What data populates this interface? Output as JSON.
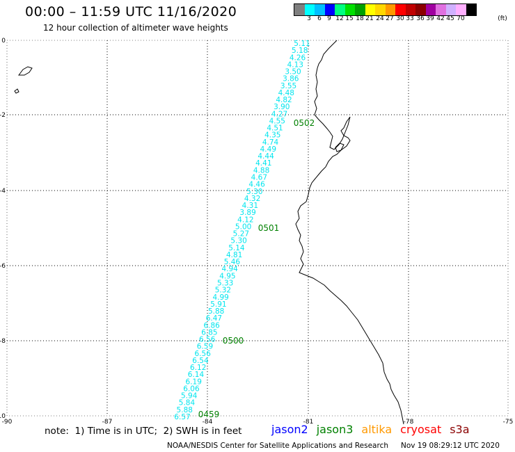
{
  "header": {
    "title": "00:00 – 11:59 UTC 11/16/2020",
    "subtitle": "12 hour collection of altimeter wave heights"
  },
  "scale": {
    "unit": "(ft)",
    "colors": [
      "#7f7f7f",
      "#00ffff",
      "#00bfff",
      "#0000ff",
      "#00ff80",
      "#00e000",
      "#00a000",
      "#ffff00",
      "#ffd700",
      "#ff9900",
      "#ff0000",
      "#c00000",
      "#8b0000",
      "#a000a0",
      "#e070e0",
      "#d0b0ff",
      "#ffb0ff",
      "#000000"
    ],
    "labels": [
      "3",
      "6",
      "9",
      "12",
      "15",
      "18",
      "21",
      "24",
      "27",
      "30",
      "33",
      "36",
      "39",
      "42",
      "45",
      "70"
    ]
  },
  "axes": {
    "lon_labels": [
      "-90",
      "-87",
      "-84",
      "-81",
      "-78",
      "-75"
    ],
    "lat_labels": [
      "0",
      "-2",
      "-4",
      "-6",
      "-8",
      "-10"
    ]
  },
  "track": {
    "color": "#00e5ee",
    "wave_heights": [
      "5.11",
      "5.18",
      "4.26",
      "4.13",
      "3.50",
      "3.86",
      "3.55",
      "4.48",
      "4.82",
      "3.90",
      "4.27",
      "4.55",
      "4.51",
      "4.35",
      "4.74",
      "4.49",
      "4.44",
      "4.41",
      "4.88",
      "4.67",
      "4.46",
      "5.30",
      "4.32",
      "4.31",
      "3.89",
      "4.12",
      "5.00",
      "5.27",
      "5.30",
      "5.14",
      "4.81",
      "5.46",
      "4.94",
      "4.95",
      "5.33",
      "5.32",
      "4.99",
      "5.91",
      "5.88",
      "6.47",
      "6.86",
      "6.85",
      "6.56",
      "6.59",
      "6.56",
      "6.54",
      "6.12",
      "6.14",
      "6.19",
      "6.06",
      "5.94",
      "5.84",
      "5.88",
      "6.57"
    ],
    "time_labels": [
      "0502",
      "0501",
      "0500",
      "0459"
    ],
    "time_color": "#008000"
  },
  "notes": {
    "note": "note:  1) Time is in UTC;  2) SWH is in feet"
  },
  "satellites": [
    {
      "name": "jason2",
      "color": "#0000ff"
    },
    {
      "name": "jason3",
      "color": "#008000"
    },
    {
      "name": "altika",
      "color": "#ff9900"
    },
    {
      "name": "cryosat",
      "color": "#ff0000"
    },
    {
      "name": "s3a",
      "color": "#8b0000"
    }
  ],
  "footer": {
    "credit": "NOAA/NESDIS Center for Satellite Applications and Research",
    "timestamp": "Nov 19 08:29:12 UTC 2020"
  }
}
